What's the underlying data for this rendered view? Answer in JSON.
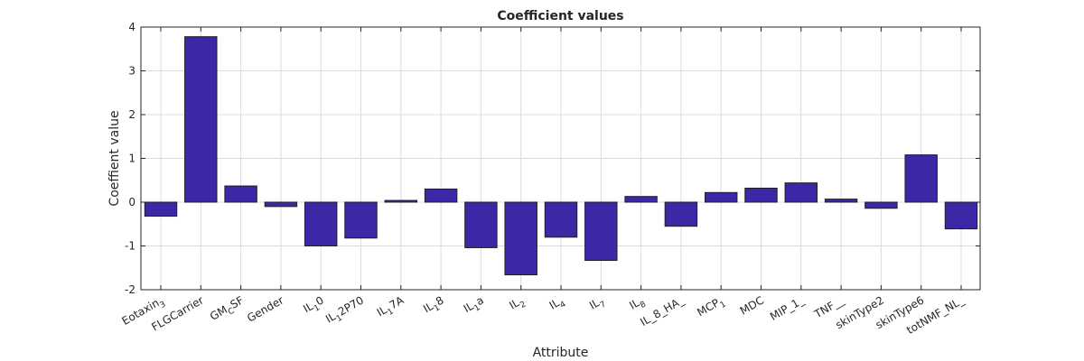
{
  "chart_data": {
    "type": "bar",
    "title": "Coefficient values",
    "xlabel": "Attribute",
    "ylabel": "Coeffient value",
    "ylim": [
      -2,
      4
    ],
    "yticks": [
      -2,
      -1,
      0,
      1,
      2,
      3,
      4
    ],
    "grid": true,
    "bar_color": "#3c28a6",
    "categories": [
      {
        "label": "Eotaxin",
        "sub": "3",
        "tail": ""
      },
      {
        "label": "FLGCarrier",
        "sub": "",
        "tail": ""
      },
      {
        "label": "GM",
        "sub": "C",
        "tail": "SF"
      },
      {
        "label": "Gender",
        "sub": "",
        "tail": ""
      },
      {
        "label": "IL",
        "sub": "1",
        "tail": "0"
      },
      {
        "label": "IL",
        "sub": "1",
        "tail": "2P70"
      },
      {
        "label": "IL",
        "sub": "1",
        "tail": "7A"
      },
      {
        "label": "IL",
        "sub": "1",
        "tail": "8"
      },
      {
        "label": "IL",
        "sub": "1",
        "tail": "a"
      },
      {
        "label": "IL",
        "sub": "2",
        "tail": ""
      },
      {
        "label": "IL",
        "sub": "4",
        "tail": ""
      },
      {
        "label": "IL",
        "sub": "7",
        "tail": ""
      },
      {
        "label": "IL",
        "sub": "8",
        "tail": ""
      },
      {
        "label": "IL_8_HA_",
        "sub": "",
        "tail": ""
      },
      {
        "label": "MCP",
        "sub": "1",
        "tail": ""
      },
      {
        "label": "MDC",
        "sub": "",
        "tail": ""
      },
      {
        "label": "MIP_1_",
        "sub": "",
        "tail": ""
      },
      {
        "label": "TNF__",
        "sub": "",
        "tail": ""
      },
      {
        "label": "skinType2",
        "sub": "",
        "tail": ""
      },
      {
        "label": "skinType6",
        "sub": "",
        "tail": ""
      },
      {
        "label": "totNMF_NL_",
        "sub": "",
        "tail": ""
      }
    ],
    "values": [
      -0.32,
      3.78,
      0.37,
      -0.1,
      -1.0,
      -0.82,
      0.04,
      0.3,
      -1.04,
      -1.66,
      -0.8,
      -1.33,
      0.13,
      -0.55,
      0.22,
      0.32,
      0.44,
      0.07,
      -0.14,
      1.08,
      -0.61
    ]
  }
}
